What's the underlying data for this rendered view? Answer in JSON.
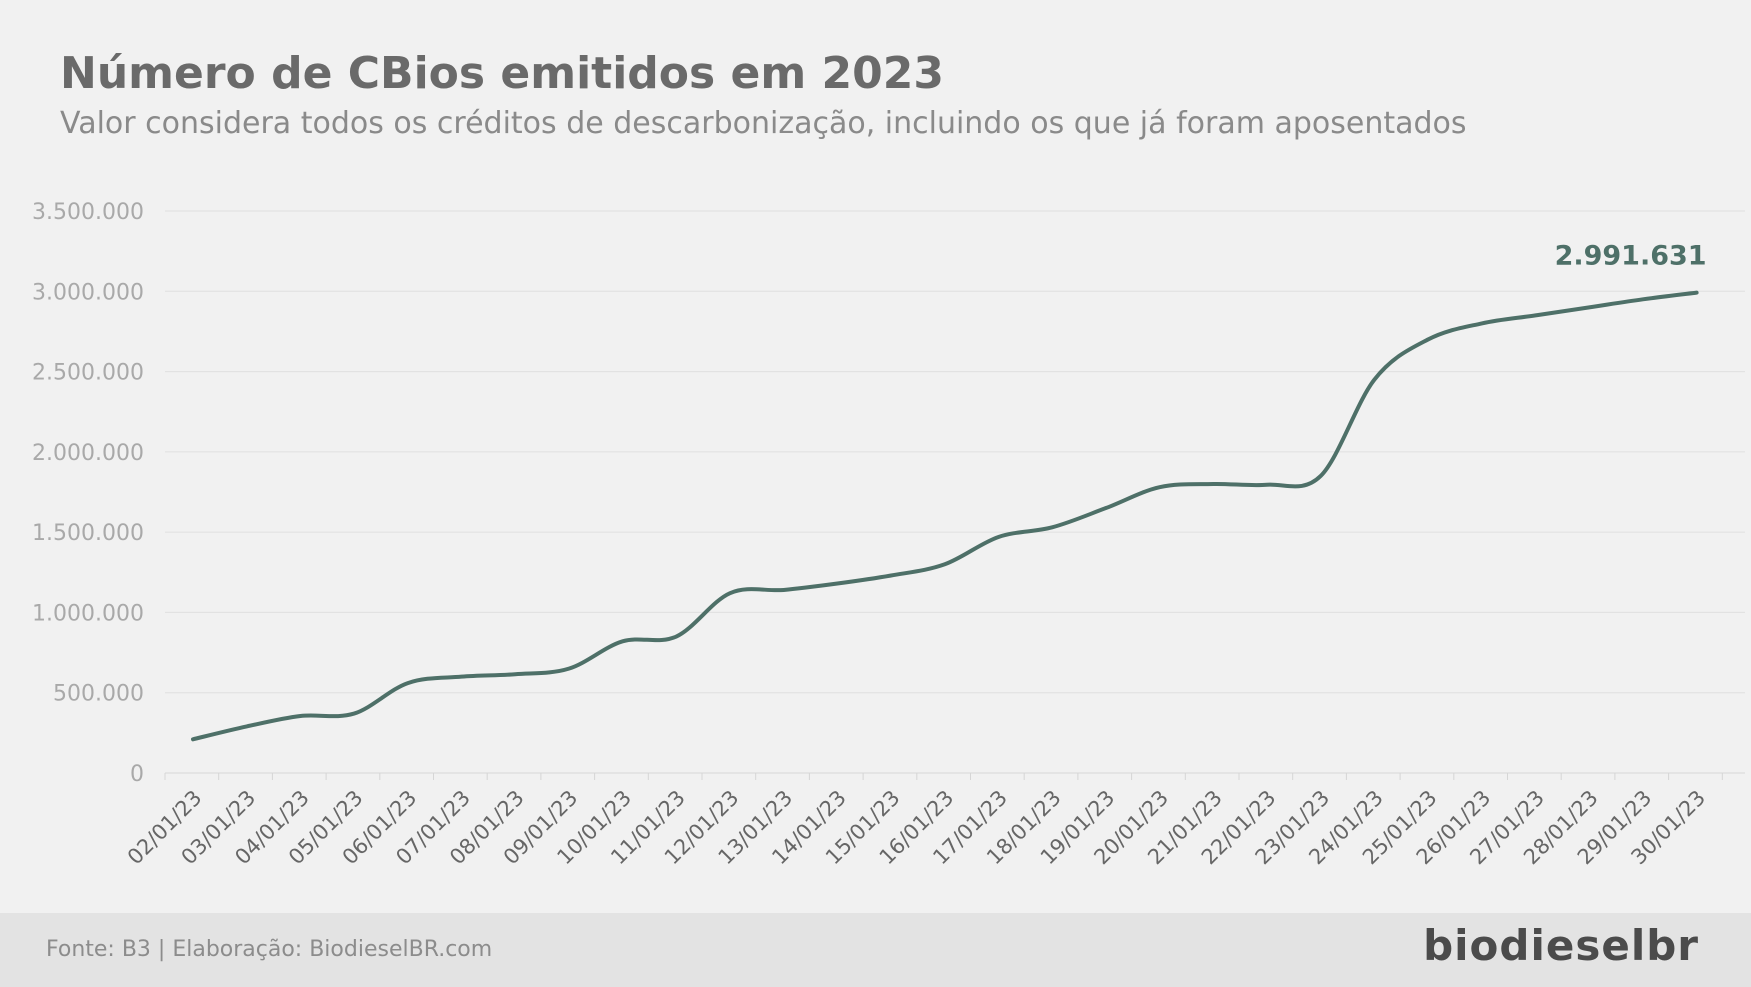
{
  "title": "Número de CBios emitidos em 2023",
  "subtitle": "Valor considera todos os créditos de descarbonização, incluindo os que já foram aposentados",
  "footer": {
    "source": "Fonte: B3 | Elaboração: BiodieselBR.com",
    "logo": "biodieselbr"
  },
  "colors": {
    "line": "#4e7068",
    "grid": "#e0e0e0",
    "background": "#f1f1f1",
    "footer": "#e3e3e3"
  },
  "chart_data": {
    "type": "line",
    "title": "Número de CBios emitidos em 2023",
    "subtitle": "Valor considera todos os créditos de descarbonização, incluindo os que já foram aposentados",
    "xlabel": "",
    "ylabel": "",
    "ylim": [
      0,
      3500000
    ],
    "y_ticks": [
      0,
      500000,
      1000000,
      1500000,
      2000000,
      2500000,
      3000000,
      3500000
    ],
    "y_tick_labels": [
      "0",
      "500.000",
      "1.000.000",
      "1.500.000",
      "2.000.000",
      "2.500.000",
      "3.000.000",
      "3.500.000"
    ],
    "grid": true,
    "legend": "none",
    "x": [
      "02/01/23",
      "03/01/23",
      "04/01/23",
      "05/01/23",
      "06/01/23",
      "07/01/23",
      "08/01/23",
      "09/01/23",
      "10/01/23",
      "11/01/23",
      "12/01/23",
      "13/01/23",
      "14/01/23",
      "15/01/23",
      "16/01/23",
      "17/01/23",
      "18/01/23",
      "19/01/23",
      "20/01/23",
      "21/01/23",
      "22/01/23",
      "23/01/23",
      "24/01/23",
      "25/01/23",
      "26/01/23",
      "27/01/23",
      "28/01/23",
      "29/01/23",
      "30/01/23"
    ],
    "series": [
      {
        "values": [
          210000,
          290000,
          355000,
          370000,
          560000,
          600000,
          615000,
          650000,
          820000,
          850000,
          1120000,
          1140000,
          1180000,
          1230000,
          1300000,
          1470000,
          1530000,
          1650000,
          1780000,
          1800000,
          1795000,
          1850000,
          2450000,
          2700000,
          2800000,
          2850000,
          2900000,
          2950000,
          2991631
        ],
        "color": "#4e7068"
      }
    ],
    "annotations": [
      {
        "text": "2.991.631",
        "x": "30/01/23",
        "y": 2991631
      }
    ]
  }
}
